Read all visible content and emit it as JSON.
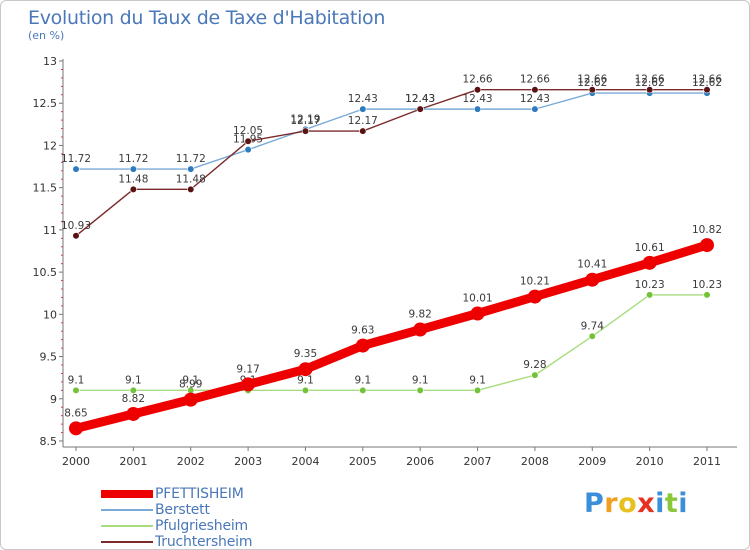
{
  "header": {
    "title": "Evolution du Taux de Taxe d'Habitation",
    "unit": "(en %)"
  },
  "chart_data": {
    "type": "line",
    "title": "Evolution du Taux de Taxe d'Habitation",
    "ylabel": "(en %)",
    "xlabel": "",
    "categories": [
      "2000",
      "2001",
      "2002",
      "2003",
      "2004",
      "2005",
      "2006",
      "2007",
      "2008",
      "2009",
      "2010",
      "2011"
    ],
    "ylim": [
      8.5,
      13
    ],
    "yticks": [
      8.5,
      9,
      9.5,
      10,
      10.5,
      11,
      11.5,
      12,
      12.5,
      13
    ],
    "ytick_labels": [
      "8.5",
      "9",
      "9.5",
      "10",
      "10.5",
      "11",
      "11.5",
      "12",
      "12.5",
      "13"
    ],
    "grid": false,
    "legend_position": "bottom-left",
    "series": [
      {
        "name": "Berstett",
        "color": "#7aaad8",
        "point_color": "#2f7bbf",
        "values": [
          11.72,
          11.72,
          11.72,
          11.95,
          12.19,
          12.43,
          12.43,
          12.43,
          12.43,
          12.62,
          12.62,
          12.62
        ],
        "labels": [
          "11.72",
          "11.72",
          "11.72",
          "11.95",
          "12.19",
          "12.43",
          "12.43",
          "12.43",
          "12.43",
          "12.62",
          "12.62",
          "12.62"
        ]
      },
      {
        "name": "Truchtersheim",
        "color": "#7a2a2a",
        "point_color": "#5a1212",
        "values": [
          10.93,
          11.48,
          11.48,
          12.05,
          12.17,
          12.17,
          12.43,
          12.66,
          12.66,
          12.66,
          12.66,
          12.66
        ],
        "labels": [
          "10.93",
          "11.48",
          "11.48",
          "12.05",
          "12.17",
          "12.17",
          "12.43",
          "12.66",
          "12.66",
          "12.66",
          "12.66",
          "12.66"
        ]
      },
      {
        "name": "Pfulgriesheim",
        "color": "#a8dc80",
        "point_color": "#72c23a",
        "values": [
          9.1,
          9.1,
          9.1,
          9.1,
          9.1,
          9.1,
          9.1,
          9.1,
          9.28,
          9.74,
          10.23,
          10.23
        ],
        "labels": [
          "9.1",
          "9.1",
          "9.1",
          "9.1",
          "9.1",
          "9.1",
          "9.1",
          "9.1",
          "9.28",
          "9.74",
          "10.23",
          "10.23"
        ]
      },
      {
        "name": "PFETTISHEIM",
        "color": "#ee0000",
        "point_color": "#ee0000",
        "values": [
          8.65,
          8.82,
          8.99,
          9.17,
          9.35,
          9.63,
          9.82,
          10.01,
          10.21,
          10.41,
          10.61,
          10.82
        ],
        "labels": [
          "8.65",
          "8.82",
          "8.99",
          "9.17",
          "9.35",
          "9.63",
          "9.82",
          "10.01",
          "10.21",
          "10.41",
          "10.61",
          "10.82"
        ]
      }
    ]
  },
  "legend": {
    "items": [
      {
        "label": "PFETTISHEIM",
        "color": "#ee0000",
        "thick": true
      },
      {
        "label": "Berstett",
        "color": "#7aaad8",
        "thick": false
      },
      {
        "label": "Pfulgriesheim",
        "color": "#a8dc80",
        "thick": false
      },
      {
        "label": "Truchtersheim",
        "color": "#7a2a2a",
        "thick": false
      }
    ]
  },
  "logo": {
    "letters": [
      "P",
      "r",
      "o",
      "x",
      "i",
      "t",
      "i"
    ],
    "colors": [
      "#3b8fd8",
      "#f0a020",
      "#e8c020",
      "#e83020",
      "#3b8fd8",
      "#8ac83a",
      "#3b8fd8"
    ]
  }
}
